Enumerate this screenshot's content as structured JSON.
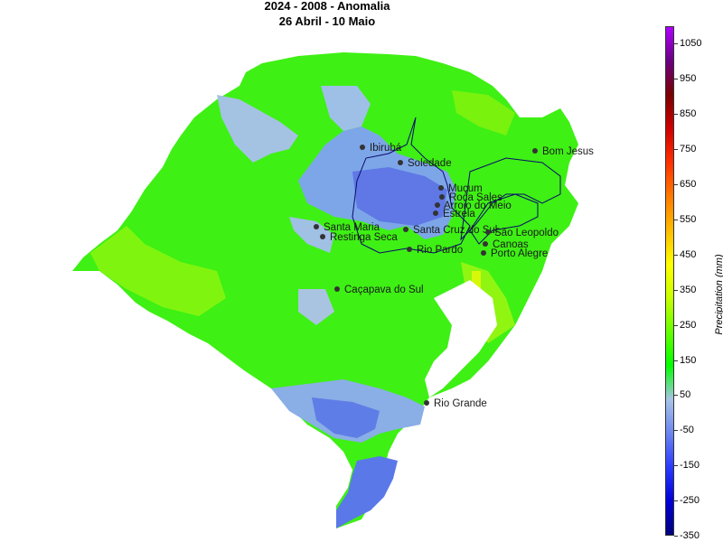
{
  "title_line1": "2024 - 2008 - Anomalia",
  "title_line2": "26 Abril - 10 Maio",
  "colorbar": {
    "label": "Precipitation (mm)",
    "min": -350,
    "max": 1100,
    "ticks": [
      "1050",
      "950",
      "850",
      "750",
      "650",
      "550",
      "450",
      "350",
      "250",
      "150",
      "50",
      "-50",
      "-150",
      "-250",
      "-350"
    ],
    "colors": [
      "#00007a",
      "#0000d8",
      "#2b3bff",
      "#6c85f0",
      "#a8c4e6",
      "#00ff00",
      "#66ff00",
      "#c8ff00",
      "#ffff00",
      "#ffbb00",
      "#ff7a00",
      "#ff3000",
      "#d00000",
      "#7a0000",
      "#6a0080",
      "#b000ff"
    ]
  },
  "cities": [
    {
      "name": "Ibirubá"
    },
    {
      "name": "Soledade"
    },
    {
      "name": "Bom Jesus"
    },
    {
      "name": "Muçum"
    },
    {
      "name": "Roca Sales"
    },
    {
      "name": "Arroio do Meio"
    },
    {
      "name": "Estrela"
    },
    {
      "name": "Santa Maria"
    },
    {
      "name": "Restinga Seca"
    },
    {
      "name": "Santa Cruz do Sul"
    },
    {
      "name": "São Leopoldo"
    },
    {
      "name": "Canoas"
    },
    {
      "name": "Porto Alegre"
    },
    {
      "name": "Rio Pardo"
    },
    {
      "name": "Caçapava do Sul"
    },
    {
      "name": "Rio Grande"
    }
  ]
}
